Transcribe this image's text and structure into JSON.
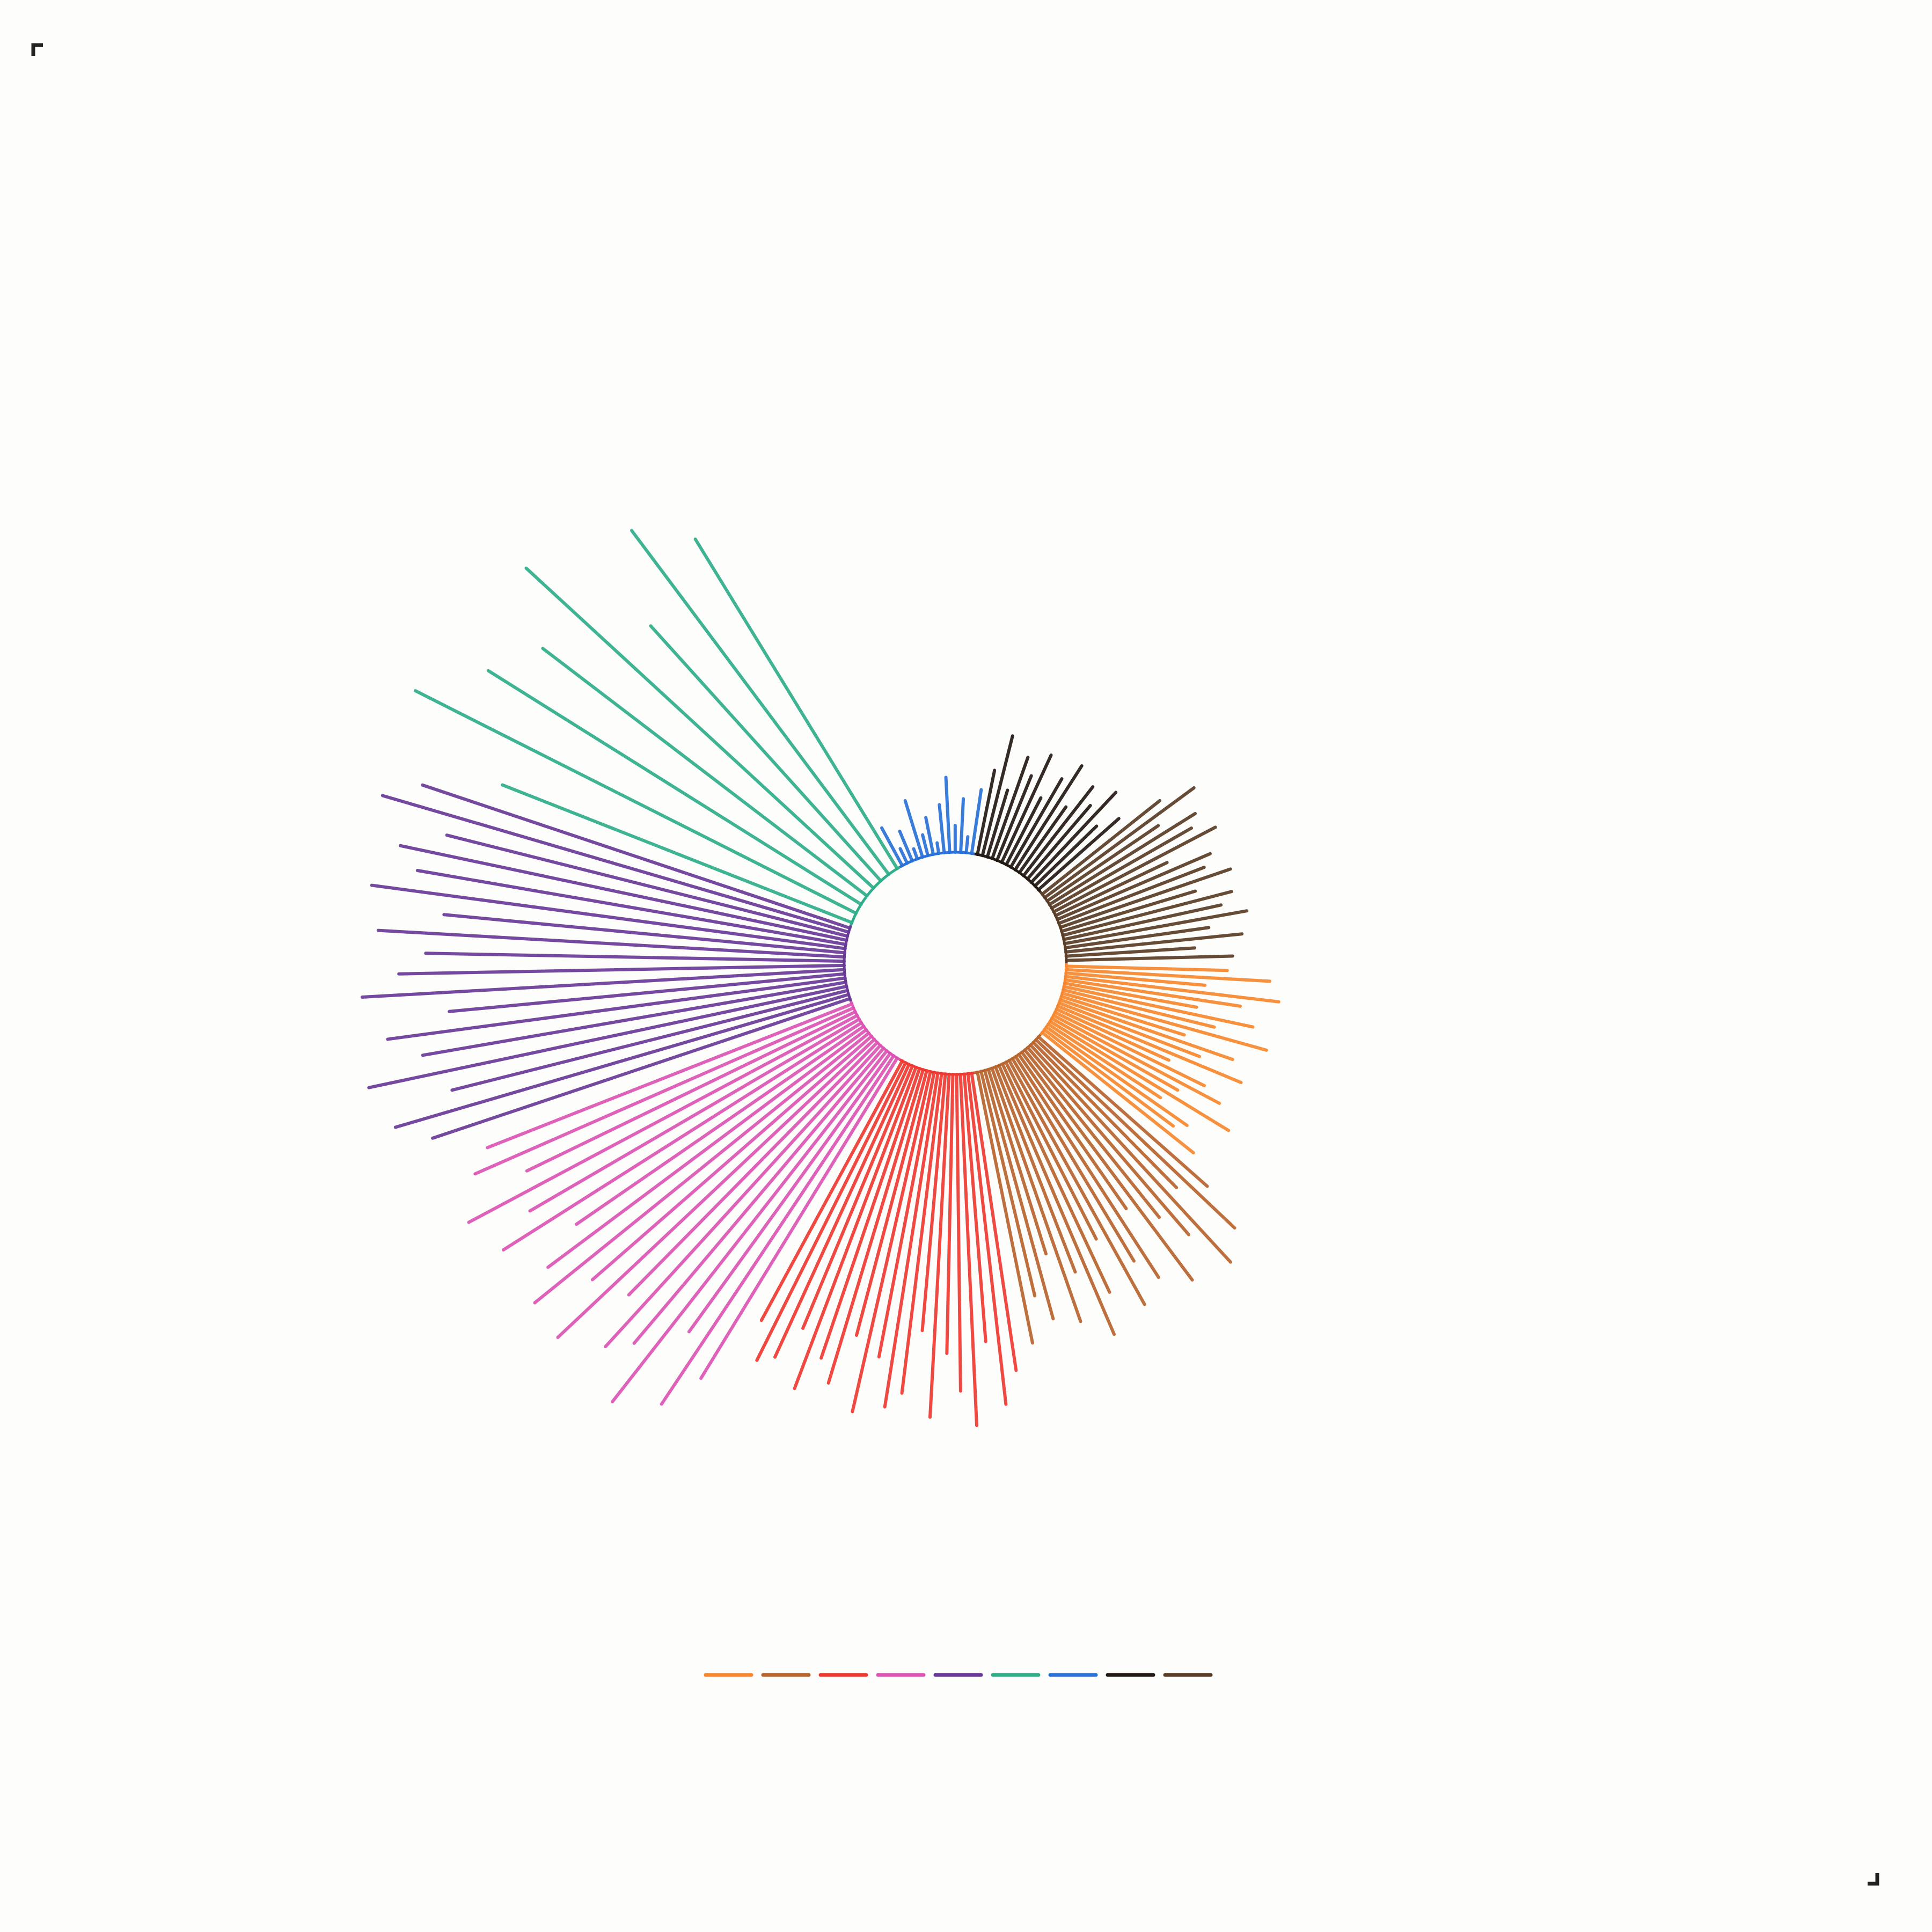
{
  "chart_data": {
    "type": "radial-bar",
    "title": "",
    "grid": false,
    "legend_placement": "bottom",
    "series": [
      {
        "color": "#f7882f",
        "values": [
          300,
          380,
          260,
          400,
          330,
          250,
          360,
          290,
          395,
          240,
          340,
          280,
          370,
          230,
          310,
          350,
          270,
          390,
          250,
          320,
          300,
          360
        ]
      },
      {
        "color": "#b8652e",
        "values": [
          420,
          510,
          380,
          550,
          460,
          400,
          530,
          350,
          490,
          440,
          520,
          370,
          470,
          545,
          410,
          500,
          360,
          480,
          430,
          515
        ]
      },
      {
        "color": "#ef3a33",
        "values": [
          560,
          620,
          500,
          655,
          590,
          520,
          640,
          480,
          600,
          630,
          540,
          650,
          510,
          610,
          570,
          640,
          530,
          600,
          620,
          550
        ]
      },
      {
        "color": "#dc55b4",
        "values": [
          700,
          780,
          640,
          830,
          720,
          760,
          660,
          810,
          690,
          800,
          740,
          650,
          790,
          710,
          820,
          680,
          770,
          730
        ]
      },
      {
        "color": "#6a3a98",
        "values": [
          820,
          880,
          760,
          910,
          800,
          860,
          740,
          900,
          830,
          780,
          870,
          750,
          890,
          810,
          850,
          770,
          905,
          840
        ]
      },
      {
        "color": "#2fae8a",
        "values": [
          700,
          920,
          820,
          760,
          880,
          640,
          800,
          720
        ]
      },
      {
        "color": "#2a72d8",
        "values": [
          80,
          30,
          60,
          20,
          110,
          40,
          70,
          20,
          90,
          140,
          50,
          100,
          30,
          120
        ]
      },
      {
        "color": "#231a14",
        "values": [
          160,
          230,
          130,
          200,
          170,
          220,
          140,
          190,
          230,
          150,
          210,
          180,
          230,
          160,
          200
        ]
      },
      {
        "color": "#5a3e27",
        "values": [
          280,
          345,
          250,
          320,
          300,
          340,
          230,
          310,
          290,
          335,
          260,
          325,
          300,
          345,
          270,
          330,
          240,
          310
        ]
      }
    ]
  },
  "page": {
    "crop_mark_color": "#222222"
  }
}
